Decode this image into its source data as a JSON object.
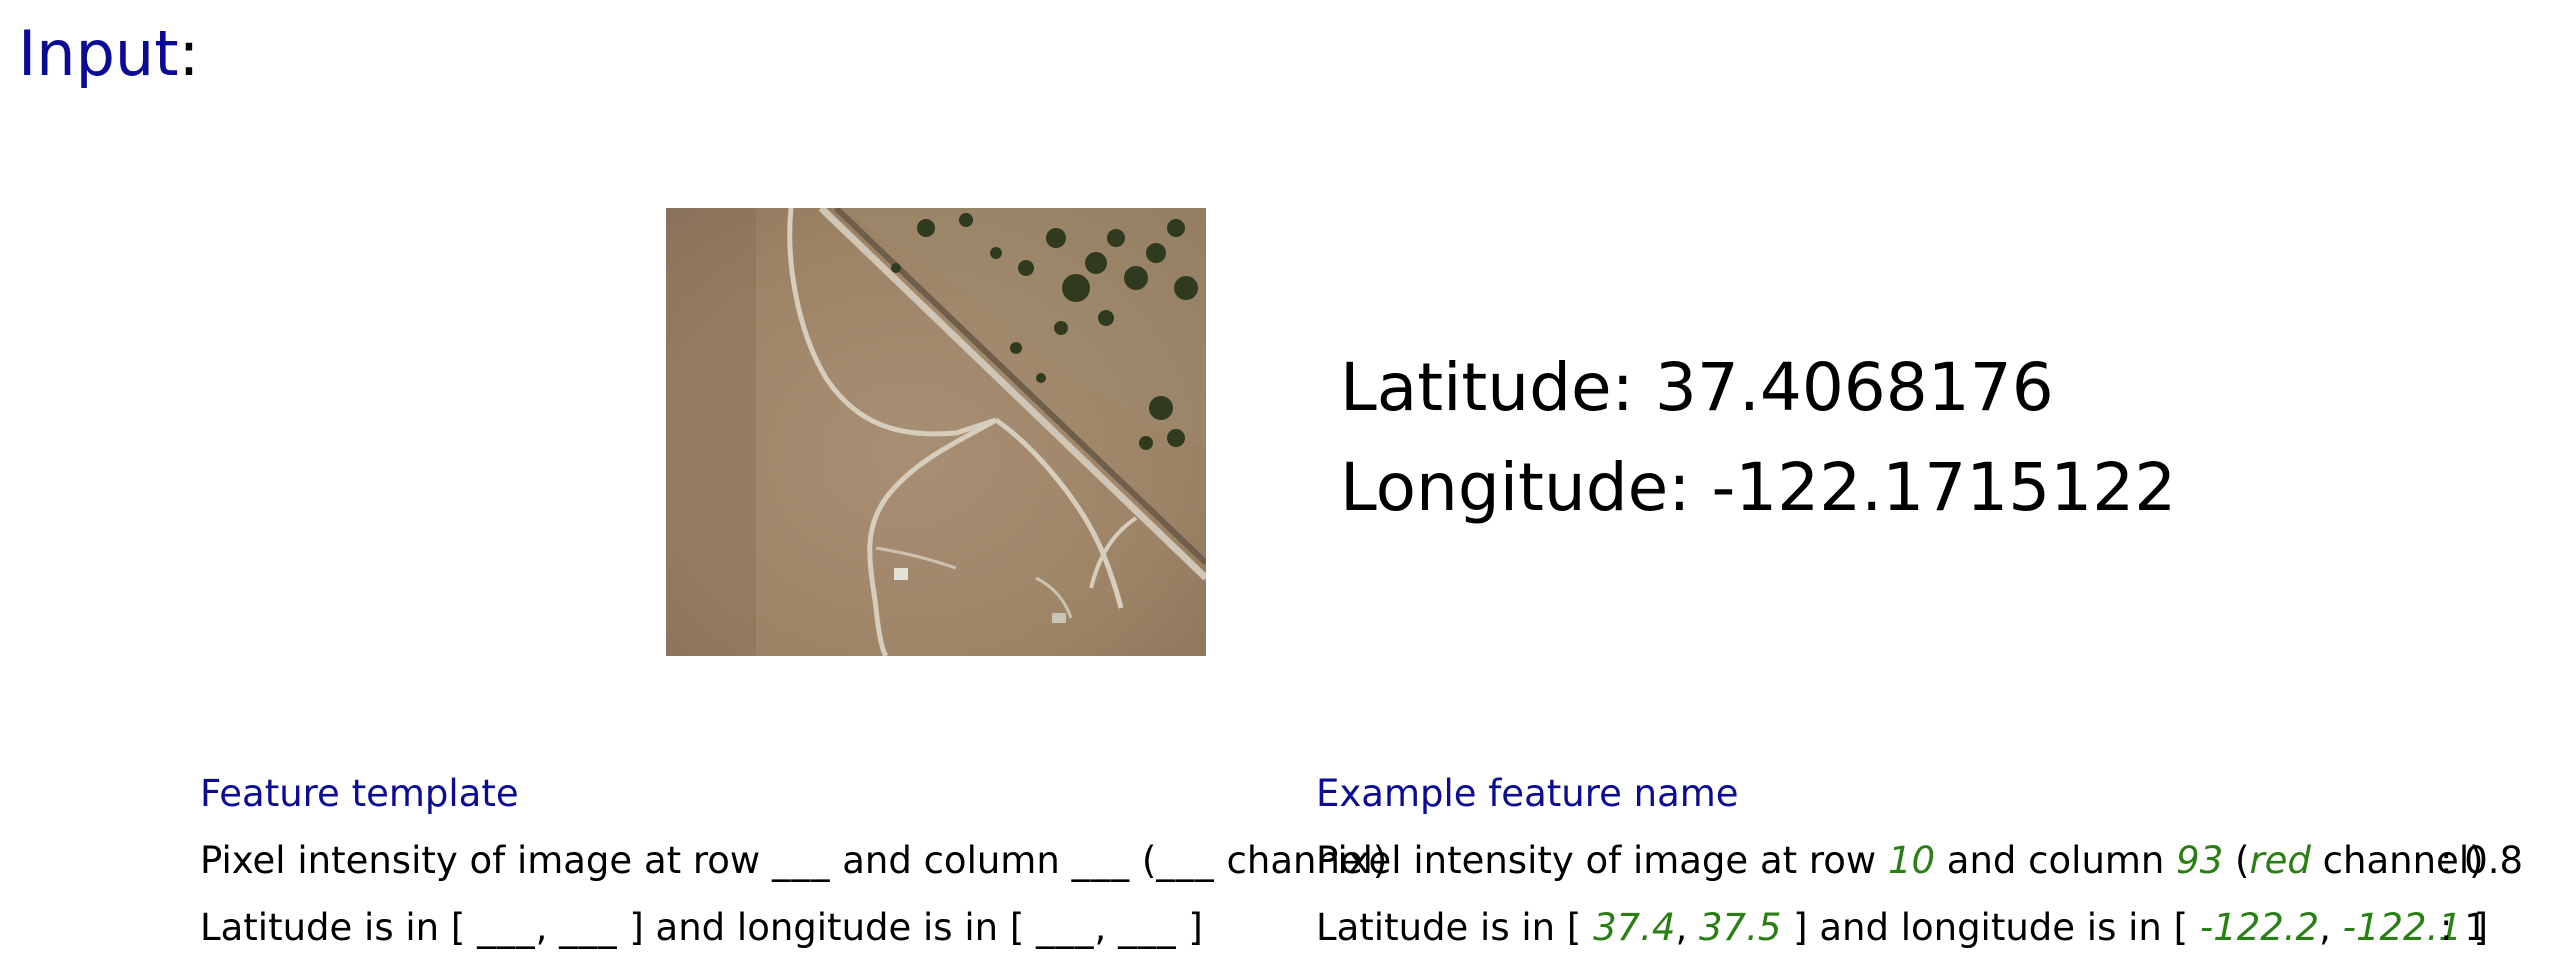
{
  "header": {
    "title_word": "Input",
    "title_colon": ":"
  },
  "input_image": {
    "kind": "satellite-image"
  },
  "coordinates": {
    "latitude_label": "Latitude:",
    "latitude_value": "37.4068176",
    "longitude_label": "Longitude:",
    "longitude_value": "-122.1715122"
  },
  "template_column": {
    "header": "Feature template",
    "row1": {
      "a": "Pixel intensity of image at row ",
      "b1": "___",
      "c": " and column ",
      "b2": "___",
      "d": " (",
      "b3": "___",
      "e": " channel)"
    },
    "row2": {
      "a": "Latitude is in [ ",
      "b1": "___",
      "c": ", ",
      "b2": "___",
      "d": " ] and longitude is in [ ",
      "b3": "___",
      "e": ", ",
      "b4": "___",
      "f": " ]"
    }
  },
  "example_column": {
    "header": "Example feature name",
    "row1": {
      "a": "Pixel intensity of image at row ",
      "row": "10",
      "b": " and column ",
      "col": "93",
      "c": " (",
      "channel": "red",
      "d": " channel)",
      "value": ": 0.8"
    },
    "row2": {
      "a": "Latitude is in [ ",
      "lat_lo": "37.4",
      "b": ", ",
      "lat_hi": "37.5",
      "c": " ] and longitude is in [ ",
      "lon_lo": "-122.2",
      "d": ", ",
      "lon_hi": "-122.1",
      "e": " ]",
      "value": ": 1"
    }
  },
  "colors": {
    "heading": "#0b0b96",
    "example_value": "#2a7f14"
  }
}
